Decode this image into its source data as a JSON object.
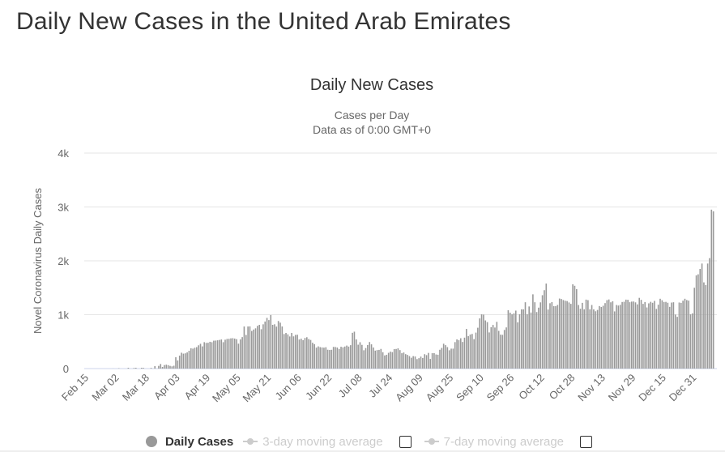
{
  "page": {
    "title": "Daily New Cases in the United Arab Emirates"
  },
  "legend": {
    "items": [
      {
        "label": "Daily Cases",
        "active": true
      },
      {
        "label": "3-day moving average",
        "active": false
      },
      {
        "label": "7-day moving average",
        "active": false
      }
    ]
  },
  "colors": {
    "bar": "#999999",
    "grid": "#e6e6e6",
    "text": "#333333",
    "muted": "#666666"
  },
  "chart_data": {
    "type": "bar",
    "title": "Daily New Cases",
    "subtitle": [
      "Cases per Day",
      "Data as of 0:00 GMT+0"
    ],
    "ylabel": "Novel Coronavirus Daily Cases",
    "xlabel": "",
    "ylim": [
      0,
      4000
    ],
    "yticks": [
      0,
      1000,
      2000,
      3000,
      4000
    ],
    "ytick_labels": [
      "0",
      "1k",
      "2k",
      "3k",
      "4k"
    ],
    "start_date": "Feb 15",
    "xtick_labels": [
      "Feb 15",
      "Mar 02",
      "Mar 18",
      "Apr 03",
      "Apr 19",
      "May 05",
      "May 21",
      "Jun 06",
      "Jun 22",
      "Jul 08",
      "Jul 24",
      "Aug 09",
      "Aug 25",
      "Sep 10",
      "Sep 26",
      "Oct 12",
      "Oct 28",
      "Nov 13",
      "Nov 29",
      "Dec 15",
      "Dec 31"
    ],
    "xtick_interval_days": 16,
    "grid": true,
    "legend_position": "bottom",
    "series": [
      {
        "name": "Daily Cases",
        "values": [
          0,
          0,
          0,
          0,
          0,
          0,
          0,
          0,
          0,
          0,
          0,
          0,
          0,
          0,
          1,
          0,
          0,
          6,
          0,
          0,
          0,
          0,
          15,
          0,
          0,
          11,
          15,
          0,
          0,
          15,
          13,
          0,
          0,
          0,
          13,
          0,
          45,
          0,
          50,
          85,
          30,
          65,
          72,
          63,
          50,
          41,
          53,
          210,
          150,
          240,
          294,
          277,
          283,
          300,
          331,
          376,
          370,
          387,
          398,
          432,
          460,
          412,
          490,
          477,
          479,
          497,
          490,
          518,
          520,
          525,
          532,
          540,
          490,
          536,
          550,
          552,
          561,
          564,
          557,
          546,
          462,
          541,
          584,
          781,
          624,
          781,
          783,
          698,
          725,
          747,
          793,
          812,
          731,
          822,
          873,
          941,
          900,
          994,
          812,
          822,
          779,
          883,
          852,
          781,
          641,
          661,
          635,
          596,
          661,
          598,
          625,
          628,
          540,
          554,
          528,
          568,
          582,
          548,
          531,
          479,
          454,
          389,
          412,
          398,
          392,
          388,
          396,
          350,
          345,
          349,
          402,
          400,
          390,
          364,
          405,
          394,
          409,
          427,
          408,
          434,
          664,
          685,
          541,
          443,
          489,
          440,
          340,
          381,
          437,
          493,
          450,
          391,
          333,
          343,
          347,
          365,
          303,
          244,
          256,
          292,
          314,
          305,
          362,
          364,
          375,
          343,
          285,
          298,
          268,
          254,
          231,
          201,
          231,
          224,
          176,
          193,
          222,
          197,
          267,
          250,
          291,
          179,
          285,
          286,
          262,
          257,
          349,
          383,
          461,
          435,
          398,
          340,
          370,
          370,
          491,
          541,
          526,
          563,
          494,
          574,
          736,
          601,
          632,
          643,
          546,
          668,
          758,
          931,
          1007,
          1002,
          894,
          862,
          671,
          768,
          810,
          762,
          867,
          700,
          630,
          626,
          717,
          764,
          1083,
          1038,
          1007,
          1025,
          1076,
          858,
          1008,
          1100,
          1100,
          1231,
          1008,
          1153,
          1041,
          1378,
          1231,
          1049,
          1131,
          1229,
          1362,
          1455,
          1578,
          1096,
          1213,
          1234,
          1159,
          1160,
          1181,
          1300,
          1291,
          1272,
          1259,
          1253,
          1227,
          1201,
          1564,
          1537,
          1474,
          1180,
          1110,
          1220,
          1100,
          1280,
          1270,
          1100,
          1180,
          1100,
          1064,
          1088,
          1160,
          1143,
          1166,
          1215,
          1270,
          1283,
          1230,
          1250,
          1061,
          1180,
          1170,
          1183,
          1236,
          1240,
          1280,
          1277,
          1232,
          1243,
          1245,
          1229,
          1192,
          1313,
          1276,
          1201,
          1235,
          1135,
          1211,
          1239,
          1221,
          1256,
          1107,
          1186,
          1296,
          1268,
          1236,
          1238,
          1222,
          1145,
          1225,
          1231,
          1003,
          960,
          1226,
          1220,
          1260,
          1296,
          1272,
          1262,
          1007,
          1025,
          1500,
          1730,
          1750,
          1850,
          1950,
          1600,
          1550,
          1950,
          2050,
          2950,
          2920
        ]
      }
    ]
  }
}
